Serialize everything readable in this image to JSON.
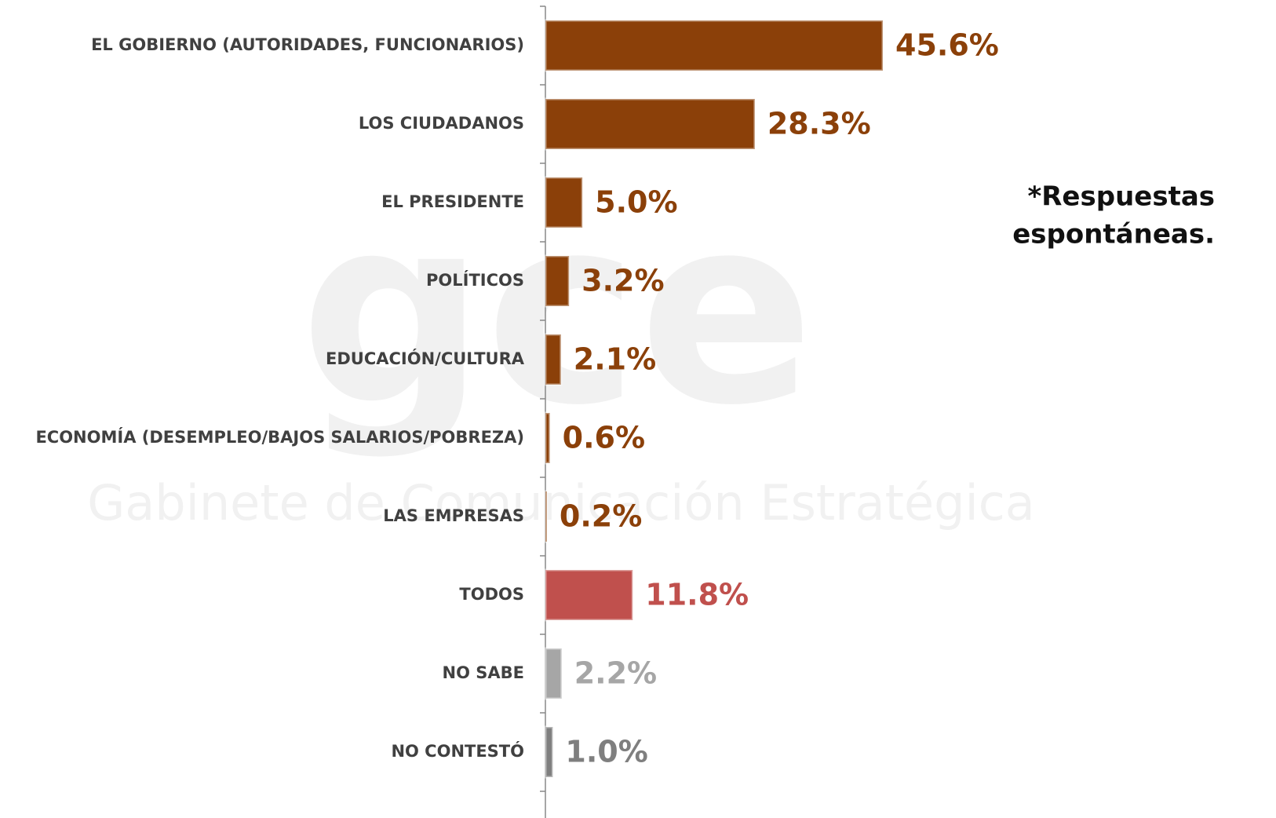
{
  "chart_data": {
    "type": "bar",
    "orientation": "horizontal",
    "categories": [
      "EL GOBIERNO (AUTORIDADES, FUNCIONARIOS)",
      "LOS CIUDADANOS",
      "EL PRESIDENTE",
      "POLÍTICOS",
      "EDUCACIÓN/CULTURA",
      "ECONOMÍA (DESEMPLEO/BAJOS SALARIOS/POBREZA)",
      "LAS EMPRESAS",
      "TODOS",
      "NO SABE",
      "NO CONTESTÓ"
    ],
    "values": [
      45.6,
      28.3,
      5.0,
      3.2,
      2.1,
      0.6,
      0.2,
      11.8,
      2.2,
      1.0
    ],
    "value_labels": [
      "45.6%",
      "28.3%",
      "5.0%",
      "3.2%",
      "2.1%",
      "0.6%",
      "0.2%",
      "11.8%",
      "2.2%",
      "1.0%"
    ],
    "colors": [
      "#8b4009",
      "#8b4009",
      "#8b4009",
      "#8b4009",
      "#8b4009",
      "#8b4009",
      "#8b4009",
      "#c0504d",
      "#a6a6a6",
      "#7f7f7f"
    ],
    "annotation": [
      "*Respuestas",
      "espontáneas."
    ],
    "watermark": {
      "logo": "gce",
      "text": "Gabinete de Comunicación Estratégica"
    }
  }
}
